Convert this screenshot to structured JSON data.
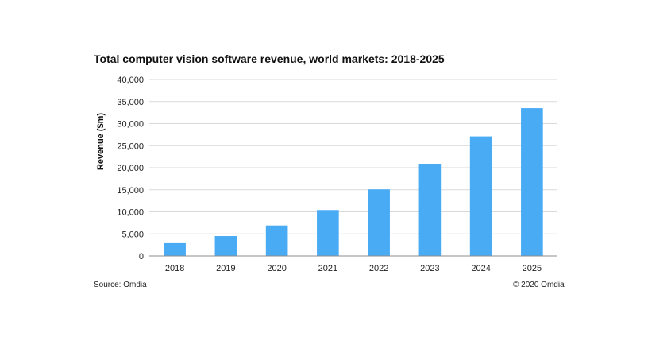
{
  "chart_data": {
    "type": "bar",
    "title": "Total computer vision software revenue, world markets: 2018-2025",
    "xlabel": "",
    "ylabel": "Revenue ($m)",
    "categories": [
      "2018",
      "2019",
      "2020",
      "2021",
      "2022",
      "2023",
      "2024",
      "2025"
    ],
    "values": [
      2900,
      4500,
      6900,
      10400,
      15100,
      20900,
      27100,
      33500
    ],
    "ylim": [
      0,
      40000
    ],
    "yticks": [
      0,
      5000,
      10000,
      15000,
      20000,
      25000,
      30000,
      35000,
      40000
    ],
    "ytick_labels": [
      "0",
      "5,000",
      "10,000",
      "15,000",
      "20,000",
      "25,000",
      "30,000",
      "35,000",
      "40,000"
    ],
    "grid": true,
    "bar_color": "#4AABF5"
  },
  "footer": {
    "source": "Source: Omdia",
    "copyright": "© 2020 Omdia"
  }
}
